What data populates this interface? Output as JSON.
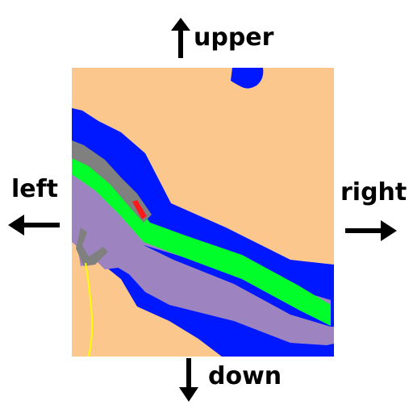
{
  "labels": {
    "up": "upper",
    "left": "left",
    "right": "right",
    "down": "down"
  },
  "icons": {
    "up": "arrow-up-icon",
    "left": "arrow-left-icon",
    "right": "arrow-right-icon",
    "down": "arrow-down-icon"
  },
  "colors": {
    "land": "#fcc78d",
    "water": "#0018ff",
    "road_purple": "#9d84c0",
    "vegetation_green": "#00ff2a",
    "gray_structure": "#808080",
    "marker_red": "#ff1a1a",
    "path_yellow": "#ffff00",
    "arrows_text": "#000000"
  }
}
